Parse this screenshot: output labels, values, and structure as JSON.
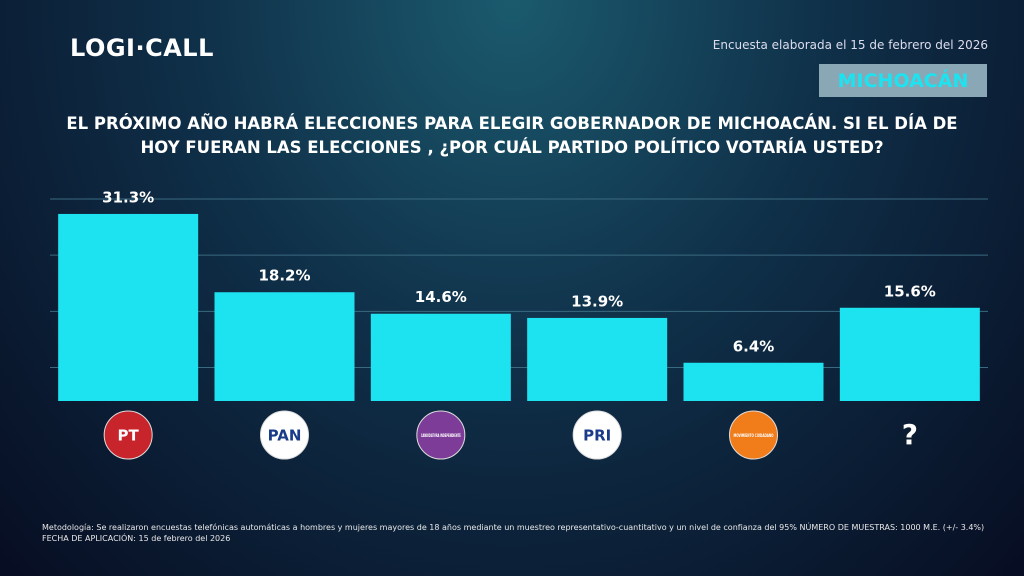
{
  "header": {
    "logo": "LOGI·CALL",
    "survey_note": "Encuesta elaborada el 15 de febrero del 2026",
    "region": "MICHOACÁN"
  },
  "chart_data": {
    "type": "bar",
    "title": "EL PRÓXIMO AÑO HABRÁ ELECCIONES PARA ELEGIR GOBERNADOR DE MICHOACÁN. SI EL DÍA DE HOY FUERAN LAS ELECCIONES , ¿POR CUÁL PARTIDO POLÍTICO VOTARÍA USTED?",
    "categories": [
      "PT",
      "PAN",
      "CANDIDATURA INDEPENDIENTE",
      "PRI",
      "MOVIMIENTO CIUDADANO",
      "?"
    ],
    "category_colors": [
      "#c8242c",
      "#ffffff",
      "#7d3c98",
      "#ffffff",
      "#f07c1a",
      null
    ],
    "values": [
      31.3,
      18.2,
      14.6,
      13.9,
      6.4,
      15.6
    ],
    "value_labels": [
      "31.3%",
      "18.2%",
      "14.6%",
      "13.9%",
      "6.4%",
      "15.6%"
    ],
    "color": "#1de3f0",
    "ylim": [
      0,
      33.8
    ],
    "yticks": [
      5.6,
      15,
      24.4,
      33.8
    ],
    "grid": true,
    "show_tick_labels": false
  },
  "footer": {
    "methodology": "Metodología: Se realizaron encuestas telefónicas automáticas a hombres y mujeres mayores de 18 años mediante un muestreo representativo-cuantitativo y un nivel de confianza del 95% NÚMERO DE MUESTRAS: 1000 M.E. (+/- 3.4%)",
    "date": "FECHA DE APLICACIÓN: 15 de febrero del 2026"
  }
}
